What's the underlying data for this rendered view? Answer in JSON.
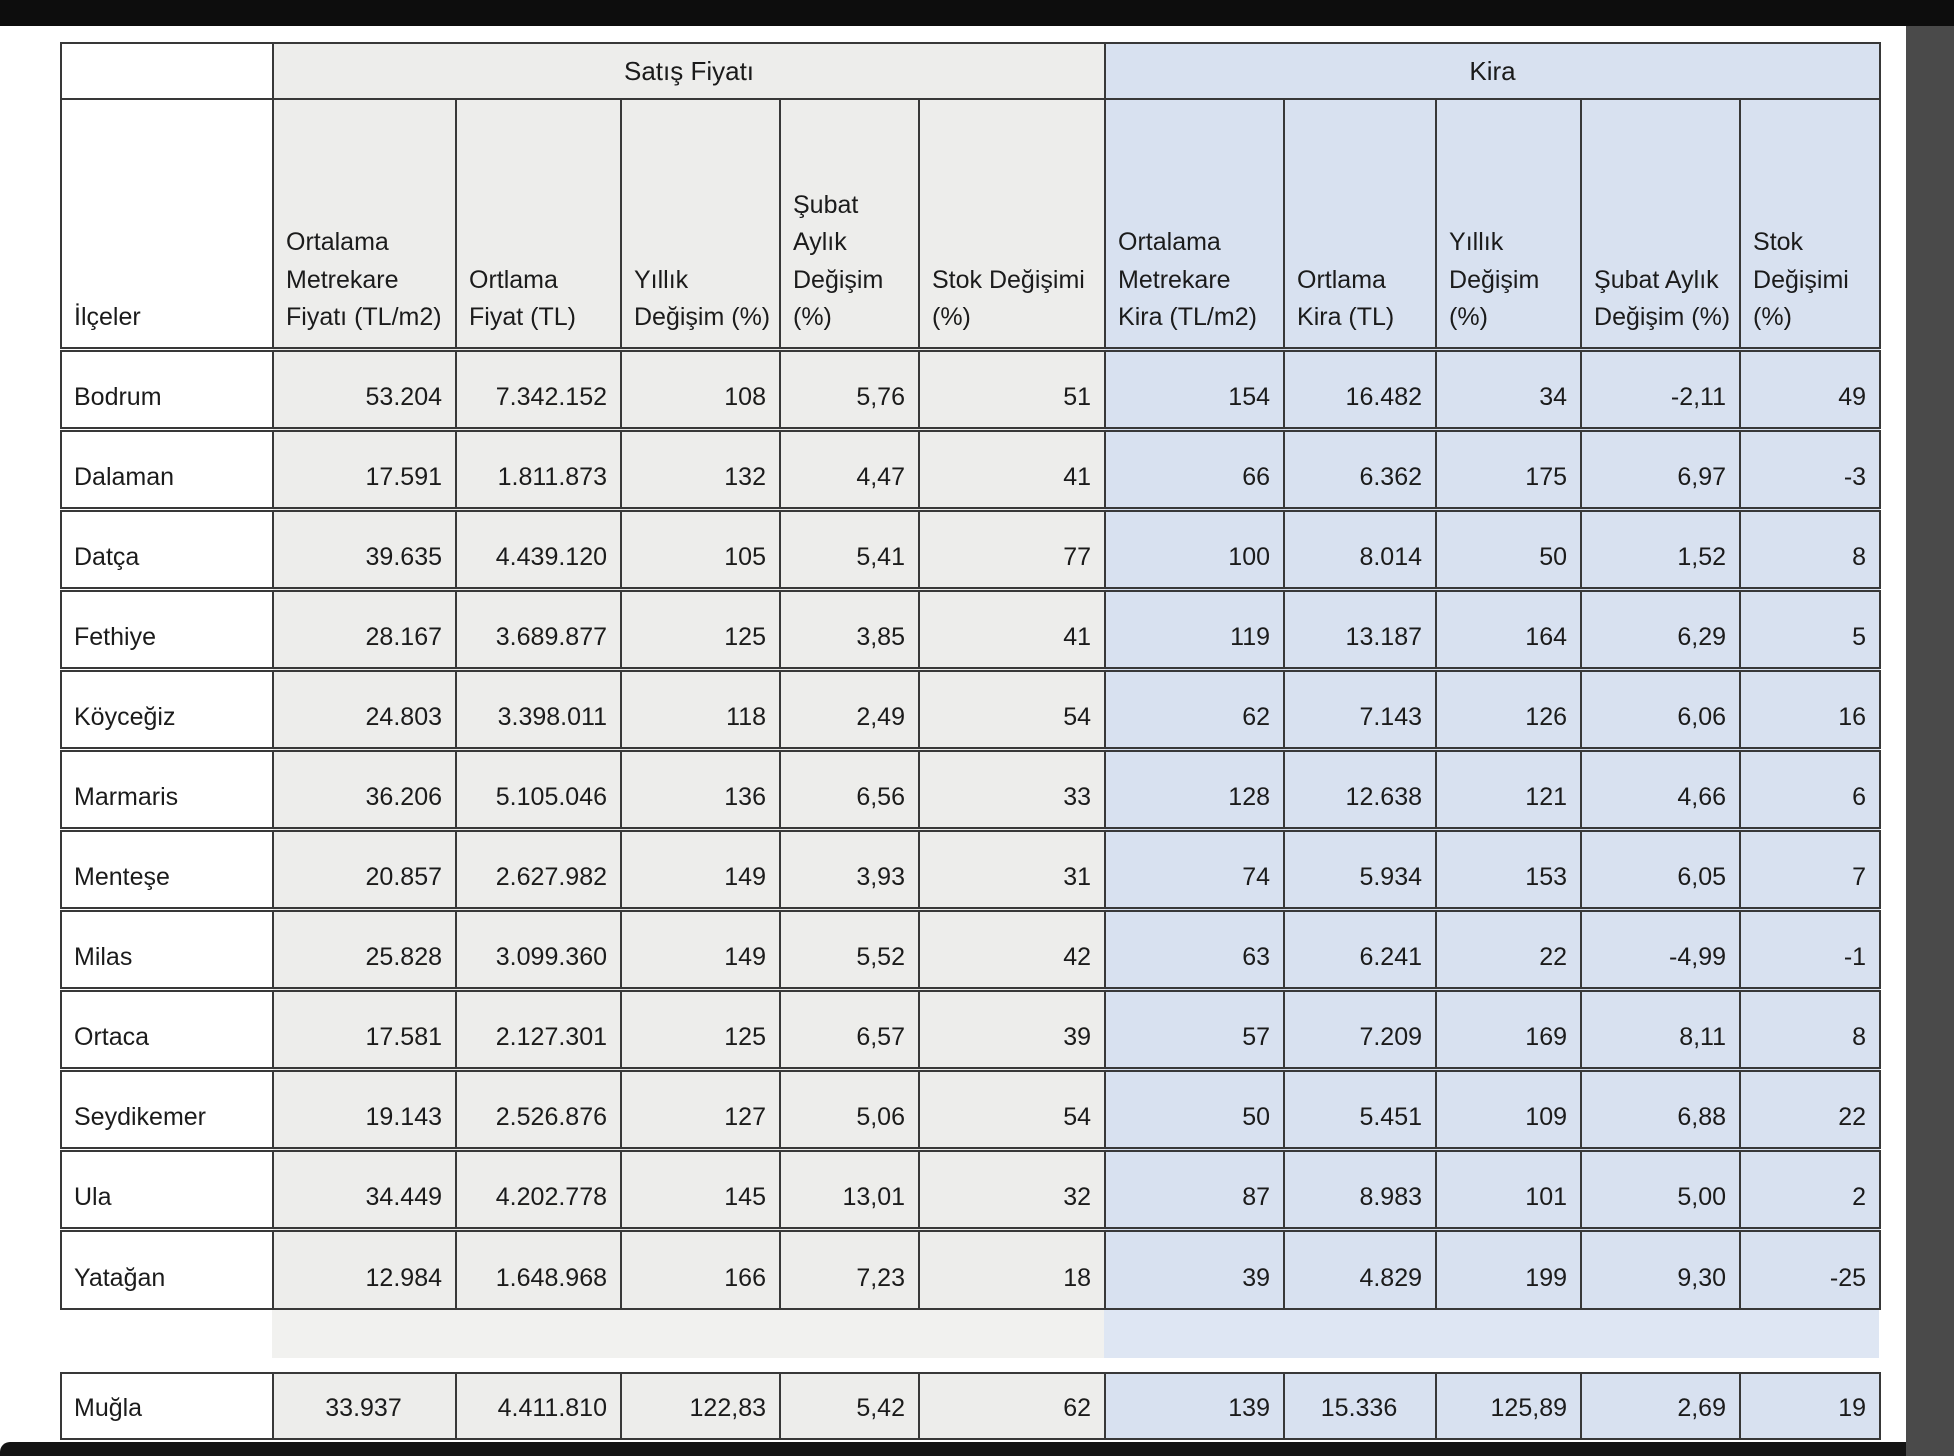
{
  "viewer": {
    "top_bar_color": "#0d0d0d",
    "right_rail_color": "#4a4a4a",
    "bottom_bar_color": "#141414"
  },
  "table": {
    "sections": [
      {
        "label": "Satış Fiyatı",
        "bg": "#ededeb",
        "gap_bg": "#f1f1ef"
      },
      {
        "label": "Kira",
        "bg": "#d8e1f0",
        "gap_bg": "#dee6f3"
      }
    ],
    "row_header": "İlçeler",
    "columns": [
      "Ortalama Metrekare Fiyatı (TL/m2)",
      "Ortlama Fiyat (TL)",
      "Yıllık Değişim (%)",
      "Şubat Aylık Değişim (%)",
      "Stok Değişimi (%)",
      "Ortalama Metrekare Kira (TL/m2)",
      "Ortlama Kira (TL)",
      "Yıllık Değişim (%)",
      "Şubat Aylık Değişim (%)",
      "Stok Değişimi (%)"
    ],
    "rows": [
      {
        "name": "Bodrum",
        "values": [
          "53.204",
          "7.342.152",
          "108",
          "5,76",
          "51",
          "154",
          "16.482",
          "34",
          "-2,11",
          "49"
        ]
      },
      {
        "name": "Dalaman",
        "values": [
          "17.591",
          "1.811.873",
          "132",
          "4,47",
          "41",
          "66",
          "6.362",
          "175",
          "6,97",
          "-3"
        ]
      },
      {
        "name": "Datça",
        "values": [
          "39.635",
          "4.439.120",
          "105",
          "5,41",
          "77",
          "100",
          "8.014",
          "50",
          "1,52",
          "8"
        ]
      },
      {
        "name": "Fethiye",
        "values": [
          "28.167",
          "3.689.877",
          "125",
          "3,85",
          "41",
          "119",
          "13.187",
          "164",
          "6,29",
          "5"
        ]
      },
      {
        "name": "Köyceğiz",
        "values": [
          "24.803",
          "3.398.011",
          "118",
          "2,49",
          "54",
          "62",
          "7.143",
          "126",
          "6,06",
          "16"
        ]
      },
      {
        "name": "Marmaris",
        "values": [
          "36.206",
          "5.105.046",
          "136",
          "6,56",
          "33",
          "128",
          "12.638",
          "121",
          "4,66",
          "6"
        ]
      },
      {
        "name": "Menteşe",
        "values": [
          "20.857",
          "2.627.982",
          "149",
          "3,93",
          "31",
          "74",
          "5.934",
          "153",
          "6,05",
          "7"
        ]
      },
      {
        "name": "Milas",
        "values": [
          "25.828",
          "3.099.360",
          "149",
          "5,52",
          "42",
          "63",
          "6.241",
          "22",
          "-4,99",
          "-1"
        ]
      },
      {
        "name": "Ortaca",
        "values": [
          "17.581",
          "2.127.301",
          "125",
          "6,57",
          "39",
          "57",
          "7.209",
          "169",
          "8,11",
          "8"
        ]
      },
      {
        "name": "Seydikemer",
        "values": [
          "19.143",
          "2.526.876",
          "127",
          "5,06",
          "54",
          "50",
          "5.451",
          "109",
          "6,88",
          "22"
        ]
      },
      {
        "name": "Ula",
        "values": [
          "34.449",
          "4.202.778",
          "145",
          "13,01",
          "32",
          "87",
          "8.983",
          "101",
          "5,00",
          "2"
        ]
      },
      {
        "name": "Yatağan",
        "values": [
          "12.984",
          "1.648.968",
          "166",
          "7,23",
          "18",
          "39",
          "4.829",
          "199",
          "9,30",
          "-25"
        ]
      }
    ],
    "summary_row": {
      "name": "Muğla",
      "values": [
        "33.937",
        "4.411.810",
        "122,83",
        "5,42",
        "62",
        "139",
        "15.336",
        "125,89",
        "2,69",
        "19"
      ]
    }
  }
}
